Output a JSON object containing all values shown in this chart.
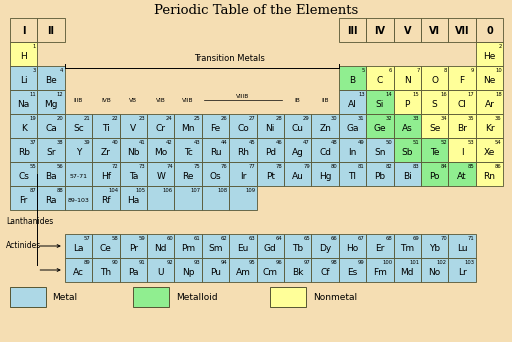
{
  "title": "Periodic Table of the Elements",
  "bg": "#F5DEB3",
  "metal_color": "#ADD8E6",
  "metalloid_color": "#90EE90",
  "nonmetal_color": "#FFFF99",
  "edge_color": "#666644",
  "elements": [
    {
      "s": "H",
      "n": 1,
      "c": 0,
      "r": 1,
      "t": "N"
    },
    {
      "s": "He",
      "n": 2,
      "c": 17,
      "r": 1,
      "t": "N"
    },
    {
      "s": "Li",
      "n": 3,
      "c": 0,
      "r": 2,
      "t": "M"
    },
    {
      "s": "Be",
      "n": 4,
      "c": 1,
      "r": 2,
      "t": "M"
    },
    {
      "s": "B",
      "n": 5,
      "c": 12,
      "r": 2,
      "t": "X"
    },
    {
      "s": "C",
      "n": 6,
      "c": 13,
      "r": 2,
      "t": "N"
    },
    {
      "s": "N",
      "n": 7,
      "c": 14,
      "r": 2,
      "t": "N"
    },
    {
      "s": "O",
      "n": 8,
      "c": 15,
      "r": 2,
      "t": "N"
    },
    {
      "s": "F",
      "n": 9,
      "c": 16,
      "r": 2,
      "t": "N"
    },
    {
      "s": "Ne",
      "n": 10,
      "c": 17,
      "r": 2,
      "t": "N"
    },
    {
      "s": "Na",
      "n": 11,
      "c": 0,
      "r": 3,
      "t": "M"
    },
    {
      "s": "Mg",
      "n": 12,
      "c": 1,
      "r": 3,
      "t": "M"
    },
    {
      "s": "Al",
      "n": 13,
      "c": 12,
      "r": 3,
      "t": "M"
    },
    {
      "s": "Si",
      "n": 14,
      "c": 13,
      "r": 3,
      "t": "X"
    },
    {
      "s": "P",
      "n": 15,
      "c": 14,
      "r": 3,
      "t": "N"
    },
    {
      "s": "S",
      "n": 16,
      "c": 15,
      "r": 3,
      "t": "N"
    },
    {
      "s": "Cl",
      "n": 17,
      "c": 16,
      "r": 3,
      "t": "N"
    },
    {
      "s": "Ar",
      "n": 18,
      "c": 17,
      "r": 3,
      "t": "N"
    },
    {
      "s": "K",
      "n": 19,
      "c": 0,
      "r": 4,
      "t": "M"
    },
    {
      "s": "Ca",
      "n": 20,
      "c": 1,
      "r": 4,
      "t": "M"
    },
    {
      "s": "Sc",
      "n": 21,
      "c": 2,
      "r": 4,
      "t": "M"
    },
    {
      "s": "Ti",
      "n": 22,
      "c": 3,
      "r": 4,
      "t": "M"
    },
    {
      "s": "V",
      "n": 23,
      "c": 4,
      "r": 4,
      "t": "M"
    },
    {
      "s": "Cr",
      "n": 24,
      "c": 5,
      "r": 4,
      "t": "M"
    },
    {
      "s": "Mn",
      "n": 25,
      "c": 6,
      "r": 4,
      "t": "M"
    },
    {
      "s": "Fe",
      "n": 26,
      "c": 7,
      "r": 4,
      "t": "M"
    },
    {
      "s": "Co",
      "n": 27,
      "c": 8,
      "r": 4,
      "t": "M"
    },
    {
      "s": "Ni",
      "n": 28,
      "c": 9,
      "r": 4,
      "t": "M"
    },
    {
      "s": "Cu",
      "n": 29,
      "c": 10,
      "r": 4,
      "t": "M"
    },
    {
      "s": "Zn",
      "n": 30,
      "c": 11,
      "r": 4,
      "t": "M"
    },
    {
      "s": "Ga",
      "n": 31,
      "c": 12,
      "r": 4,
      "t": "M"
    },
    {
      "s": "Ge",
      "n": 32,
      "c": 13,
      "r": 4,
      "t": "X"
    },
    {
      "s": "As",
      "n": 33,
      "c": 14,
      "r": 4,
      "t": "X"
    },
    {
      "s": "Se",
      "n": 34,
      "c": 15,
      "r": 4,
      "t": "N"
    },
    {
      "s": "Br",
      "n": 35,
      "c": 16,
      "r": 4,
      "t": "N"
    },
    {
      "s": "Kr",
      "n": 36,
      "c": 17,
      "r": 4,
      "t": "N"
    },
    {
      "s": "Rb",
      "n": 37,
      "c": 0,
      "r": 5,
      "t": "M"
    },
    {
      "s": "Sr",
      "n": 38,
      "c": 1,
      "r": 5,
      "t": "M"
    },
    {
      "s": "Y",
      "n": 39,
      "c": 2,
      "r": 5,
      "t": "M"
    },
    {
      "s": "Zr",
      "n": 40,
      "c": 3,
      "r": 5,
      "t": "M"
    },
    {
      "s": "Nb",
      "n": 41,
      "c": 4,
      "r": 5,
      "t": "M"
    },
    {
      "s": "Mo",
      "n": 42,
      "c": 5,
      "r": 5,
      "t": "M"
    },
    {
      "s": "Tc",
      "n": 43,
      "c": 6,
      "r": 5,
      "t": "M"
    },
    {
      "s": "Ru",
      "n": 44,
      "c": 7,
      "r": 5,
      "t": "M"
    },
    {
      "s": "Rh",
      "n": 45,
      "c": 8,
      "r": 5,
      "t": "M"
    },
    {
      "s": "Pd",
      "n": 46,
      "c": 9,
      "r": 5,
      "t": "M"
    },
    {
      "s": "Ag",
      "n": 47,
      "c": 10,
      "r": 5,
      "t": "M"
    },
    {
      "s": "Cd",
      "n": 48,
      "c": 11,
      "r": 5,
      "t": "M"
    },
    {
      "s": "In",
      "n": 49,
      "c": 12,
      "r": 5,
      "t": "M"
    },
    {
      "s": "Sn",
      "n": 50,
      "c": 13,
      "r": 5,
      "t": "M"
    },
    {
      "s": "Sb",
      "n": 51,
      "c": 14,
      "r": 5,
      "t": "X"
    },
    {
      "s": "Te",
      "n": 52,
      "c": 15,
      "r": 5,
      "t": "X"
    },
    {
      "s": "I",
      "n": 53,
      "c": 16,
      "r": 5,
      "t": "N"
    },
    {
      "s": "Xe",
      "n": 54,
      "c": 17,
      "r": 5,
      "t": "N"
    },
    {
      "s": "Cs",
      "n": 55,
      "c": 0,
      "r": 6,
      "t": "M"
    },
    {
      "s": "Ba",
      "n": 56,
      "c": 1,
      "r": 6,
      "t": "M"
    },
    {
      "s": "Hf",
      "n": 72,
      "c": 3,
      "r": 6,
      "t": "M"
    },
    {
      "s": "Ta",
      "n": 73,
      "c": 4,
      "r": 6,
      "t": "M"
    },
    {
      "s": "W",
      "n": 74,
      "c": 5,
      "r": 6,
      "t": "M"
    },
    {
      "s": "Re",
      "n": 75,
      "c": 6,
      "r": 6,
      "t": "M"
    },
    {
      "s": "Os",
      "n": 76,
      "c": 7,
      "r": 6,
      "t": "M"
    },
    {
      "s": "Ir",
      "n": 77,
      "c": 8,
      "r": 6,
      "t": "M"
    },
    {
      "s": "Pt",
      "n": 78,
      "c": 9,
      "r": 6,
      "t": "M"
    },
    {
      "s": "Au",
      "n": 79,
      "c": 10,
      "r": 6,
      "t": "M"
    },
    {
      "s": "Hg",
      "n": 80,
      "c": 11,
      "r": 6,
      "t": "M"
    },
    {
      "s": "Tl",
      "n": 81,
      "c": 12,
      "r": 6,
      "t": "M"
    },
    {
      "s": "Pb",
      "n": 82,
      "c": 13,
      "r": 6,
      "t": "M"
    },
    {
      "s": "Bi",
      "n": 83,
      "c": 14,
      "r": 6,
      "t": "M"
    },
    {
      "s": "Po",
      "n": 84,
      "c": 15,
      "r": 6,
      "t": "X"
    },
    {
      "s": "At",
      "n": 85,
      "c": 16,
      "r": 6,
      "t": "X"
    },
    {
      "s": "Rn",
      "n": 86,
      "c": 17,
      "r": 6,
      "t": "N"
    },
    {
      "s": "Fr",
      "n": 87,
      "c": 0,
      "r": 7,
      "t": "M"
    },
    {
      "s": "Ra",
      "n": 88,
      "c": 1,
      "r": 7,
      "t": "M"
    },
    {
      "s": "Rf",
      "n": 104,
      "c": 3,
      "r": 7,
      "t": "M"
    },
    {
      "s": "Ha",
      "n": 105,
      "c": 4,
      "r": 7,
      "t": "M"
    },
    {
      "s": "La",
      "n": 57,
      "c": 2,
      "r": 9,
      "t": "M"
    },
    {
      "s": "Ce",
      "n": 58,
      "c": 3,
      "r": 9,
      "t": "M"
    },
    {
      "s": "Pr",
      "n": 59,
      "c": 4,
      "r": 9,
      "t": "M"
    },
    {
      "s": "Nd",
      "n": 60,
      "c": 5,
      "r": 9,
      "t": "M"
    },
    {
      "s": "Pm",
      "n": 61,
      "c": 6,
      "r": 9,
      "t": "M"
    },
    {
      "s": "Sm",
      "n": 62,
      "c": 7,
      "r": 9,
      "t": "M"
    },
    {
      "s": "Eu",
      "n": 63,
      "c": 8,
      "r": 9,
      "t": "M"
    },
    {
      "s": "Gd",
      "n": 64,
      "c": 9,
      "r": 9,
      "t": "M"
    },
    {
      "s": "Tb",
      "n": 65,
      "c": 10,
      "r": 9,
      "t": "M"
    },
    {
      "s": "Dy",
      "n": 66,
      "c": 11,
      "r": 9,
      "t": "M"
    },
    {
      "s": "Ho",
      "n": 67,
      "c": 12,
      "r": 9,
      "t": "M"
    },
    {
      "s": "Er",
      "n": 68,
      "c": 13,
      "r": 9,
      "t": "M"
    },
    {
      "s": "Tm",
      "n": 69,
      "c": 14,
      "r": 9,
      "t": "M"
    },
    {
      "s": "Yb",
      "n": 70,
      "c": 15,
      "r": 9,
      "t": "M"
    },
    {
      "s": "Lu",
      "n": 71,
      "c": 16,
      "r": 9,
      "t": "M"
    },
    {
      "s": "Ac",
      "n": 89,
      "c": 2,
      "r": 10,
      "t": "M"
    },
    {
      "s": "Th",
      "n": 90,
      "c": 3,
      "r": 10,
      "t": "M"
    },
    {
      "s": "Pa",
      "n": 91,
      "c": 4,
      "r": 10,
      "t": "M"
    },
    {
      "s": "U",
      "n": 92,
      "c": 5,
      "r": 10,
      "t": "M"
    },
    {
      "s": "Np",
      "n": 93,
      "c": 6,
      "r": 10,
      "t": "M"
    },
    {
      "s": "Pu",
      "n": 94,
      "c": 7,
      "r": 10,
      "t": "M"
    },
    {
      "s": "Am",
      "n": 95,
      "c": 8,
      "r": 10,
      "t": "M"
    },
    {
      "s": "Cm",
      "n": 96,
      "c": 9,
      "r": 10,
      "t": "M"
    },
    {
      "s": "Bk",
      "n": 97,
      "c": 10,
      "r": 10,
      "t": "M"
    },
    {
      "s": "Cf",
      "n": 98,
      "c": 11,
      "r": 10,
      "t": "M"
    },
    {
      "s": "Es",
      "n": 99,
      "c": 12,
      "r": 10,
      "t": "M"
    },
    {
      "s": "Fm",
      "n": 100,
      "c": 13,
      "r": 10,
      "t": "M"
    },
    {
      "s": "Md",
      "n": 101,
      "c": 14,
      "r": 10,
      "t": "M"
    },
    {
      "s": "No",
      "n": 102,
      "c": 15,
      "r": 10,
      "t": "M"
    },
    {
      "s": "Lr",
      "n": 103,
      "c": 16,
      "r": 10,
      "t": "M"
    }
  ],
  "group_labels": [
    "I",
    "II",
    "III",
    "IV",
    "V",
    "VI",
    "VII",
    "0"
  ],
  "group_cols": [
    0,
    1,
    12,
    13,
    14,
    15,
    16,
    17
  ],
  "tm_labels": [
    "IIIB",
    "IVB",
    "VB",
    "VIB",
    "VIIB",
    "IB",
    "IIB"
  ],
  "tm_cols": [
    2,
    3,
    4,
    5,
    6,
    10,
    11
  ],
  "row7_extra_nums": [
    106,
    107,
    108,
    109
  ],
  "row7_extra_cols": [
    5,
    6,
    7,
    8
  ]
}
